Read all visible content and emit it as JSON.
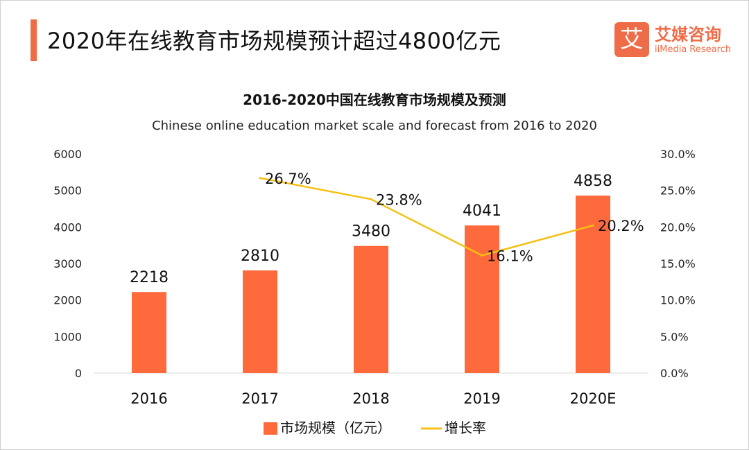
{
  "header": {
    "title": "2020年在线教育市场规模预计超过4800亿元",
    "accent_color": "#ef6c48"
  },
  "brand": {
    "logo_glyph": "艾",
    "name_cn": "艾媒咨询",
    "name_en": "iiMedia Research"
  },
  "chart_data": {
    "type": "bar",
    "title": "2016-2020中国在线教育市场规模及预测",
    "subtitle": "Chinese online education market scale and forecast from 2016 to 2020",
    "categories": [
      "2016",
      "2017",
      "2018",
      "2019",
      "2020E"
    ],
    "series": [
      {
        "name": "市场规模（亿元）",
        "type": "bar",
        "axis": "left",
        "color": "#ff6a3d",
        "values": [
          2218,
          2810,
          3480,
          4041,
          4858
        ],
        "labels": [
          "2218",
          "2810",
          "3480",
          "4041",
          "4858"
        ]
      },
      {
        "name": "增长率",
        "type": "line",
        "axis": "right",
        "color": "#f5c011",
        "values": [
          null,
          26.7,
          23.8,
          16.1,
          20.2
        ],
        "labels": [
          "",
          "26.7%",
          "23.8%",
          "16.1%",
          "20.2%"
        ]
      }
    ],
    "y_left": {
      "min": 0,
      "max": 6000,
      "ticks": [
        "0",
        "1000",
        "2000",
        "3000",
        "4000",
        "5000",
        "6000"
      ]
    },
    "y_right": {
      "min": 0,
      "max": 30,
      "ticks": [
        "0.0%",
        "5.0%",
        "10.0%",
        "15.0%",
        "20.0%",
        "25.0%",
        "30.0%"
      ]
    },
    "grid": false,
    "legend_position": "bottom-center"
  }
}
